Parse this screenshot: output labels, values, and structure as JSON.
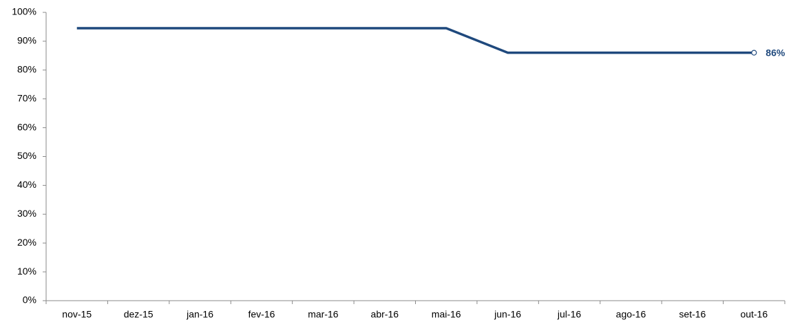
{
  "chart_data": {
    "type": "line",
    "categories": [
      "nov-15",
      "dez-15",
      "jan-16",
      "fev-16",
      "mar-16",
      "abr-16",
      "mai-16",
      "jun-16",
      "jul-16",
      "ago-16",
      "set-16",
      "out-16"
    ],
    "series": [
      {
        "color": "#1f497d",
        "values": [
          94.5,
          94.5,
          94.5,
          94.5,
          94.5,
          94.5,
          94.5,
          86,
          86,
          86,
          86,
          86
        ],
        "value_labels": [
          null,
          null,
          null,
          null,
          null,
          null,
          null,
          null,
          null,
          null,
          null,
          "86%"
        ]
      }
    ],
    "ylim": [
      0,
      100
    ],
    "yticks": [
      {
        "value": 0,
        "label": "0%"
      },
      {
        "value": 10,
        "label": "10%"
      },
      {
        "value": 20,
        "label": "20%"
      },
      {
        "value": 30,
        "label": "30%"
      },
      {
        "value": 40,
        "label": "40%"
      },
      {
        "value": 50,
        "label": "50%"
      },
      {
        "value": 60,
        "label": "60%"
      },
      {
        "value": 70,
        "label": "70%"
      },
      {
        "value": 80,
        "label": "80%"
      },
      {
        "value": 90,
        "label": "90%"
      },
      {
        "value": 100,
        "label": "100%"
      }
    ],
    "grid": false
  }
}
